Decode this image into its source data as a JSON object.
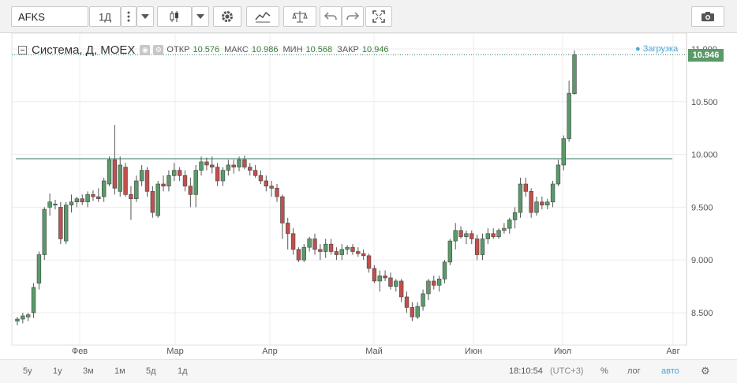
{
  "toolbar": {
    "symbol": "AFKS",
    "interval": "1Д",
    "icons": [
      "more-icon",
      "caret-down-icon",
      "candles-icon",
      "caret-down-icon",
      "gear-icon",
      "indicators-icon",
      "compare-icon",
      "undo-icon",
      "redo-icon",
      "fullscreen-icon",
      "camera-icon"
    ]
  },
  "legend": {
    "title": "Система, Д, MOEX",
    "open_label": "ОТКР",
    "open": "10.576",
    "high_label": "МАКС",
    "high": "10.986",
    "low_label": "МИН",
    "low": "10.568",
    "close_label": "ЗАКР",
    "close": "10.946",
    "loading": "● Загрузка"
  },
  "price_badge": "10.946",
  "y_axis": {
    "ticks": [
      "11.000",
      "10.500",
      "10.000",
      "9.500",
      "9.000",
      "8.500"
    ],
    "tick_values": [
      11.0,
      10.5,
      10.0,
      9.5,
      9.0,
      8.5
    ]
  },
  "x_axis": {
    "ticks": [
      "Фев",
      "Мар",
      "Апр",
      "Май",
      "Июн",
      "Июл",
      "Авг"
    ]
  },
  "colors": {
    "up": "#5a9a6a",
    "down": "#c0504d",
    "hline": "#2f7f5a",
    "badge": "#5a9a6a"
  },
  "bottom": {
    "ranges": [
      "5у",
      "1у",
      "3м",
      "1м",
      "5д",
      "1д"
    ],
    "time": "18:10:54",
    "tz": "(UTC+3)",
    "percent": "%",
    "log": "лог",
    "auto": "авто"
  },
  "chart_data": {
    "type": "candlestick",
    "hline": 9.96,
    "ylim": [
      8.25,
      11.05
    ],
    "candles": [
      [
        8.42,
        8.46,
        8.38,
        8.44
      ],
      [
        8.44,
        8.5,
        8.4,
        8.47
      ],
      [
        8.46,
        8.5,
        8.42,
        8.48
      ],
      [
        8.5,
        8.78,
        8.45,
        8.74
      ],
      [
        8.78,
        9.08,
        8.72,
        9.05
      ],
      [
        9.05,
        9.5,
        9.0,
        9.48
      ],
      [
        9.5,
        9.63,
        9.42,
        9.55
      ],
      [
        9.52,
        9.57,
        9.48,
        9.53
      ],
      [
        9.5,
        9.55,
        9.15,
        9.2
      ],
      [
        9.18,
        9.55,
        9.15,
        9.52
      ],
      [
        9.52,
        9.62,
        9.45,
        9.55
      ],
      [
        9.55,
        9.6,
        9.5,
        9.58
      ],
      [
        9.58,
        9.62,
        9.52,
        9.55
      ],
      [
        9.55,
        9.65,
        9.5,
        9.62
      ],
      [
        9.62,
        9.66,
        9.56,
        9.6
      ],
      [
        9.6,
        9.68,
        9.55,
        9.58
      ],
      [
        9.6,
        9.78,
        9.55,
        9.75
      ],
      [
        9.72,
        9.98,
        9.7,
        9.95
      ],
      [
        9.95,
        10.28,
        9.62,
        9.68
      ],
      [
        9.65,
        9.98,
        9.6,
        9.9
      ],
      [
        9.88,
        9.92,
        9.6,
        9.62
      ],
      [
        9.62,
        9.7,
        9.38,
        9.58
      ],
      [
        9.58,
        9.8,
        9.55,
        9.75
      ],
      [
        9.75,
        9.9,
        9.7,
        9.85
      ],
      [
        9.85,
        9.88,
        9.6,
        9.65
      ],
      [
        9.65,
        9.7,
        9.4,
        9.45
      ],
      [
        9.42,
        9.75,
        9.4,
        9.72
      ],
      [
        9.72,
        9.8,
        9.65,
        9.7
      ],
      [
        9.7,
        9.85,
        9.65,
        9.8
      ],
      [
        9.8,
        9.92,
        9.75,
        9.85
      ],
      [
        9.85,
        9.88,
        9.75,
        9.8
      ],
      [
        9.8,
        9.85,
        9.65,
        9.7
      ],
      [
        9.7,
        9.78,
        9.5,
        9.62
      ],
      [
        9.62,
        9.9,
        9.5,
        9.85
      ],
      [
        9.85,
        9.98,
        9.8,
        9.93
      ],
      [
        9.93,
        9.97,
        9.85,
        9.9
      ],
      [
        9.9,
        9.98,
        9.82,
        9.88
      ],
      [
        9.88,
        9.92,
        9.7,
        9.75
      ],
      [
        9.75,
        9.88,
        9.7,
        9.85
      ],
      [
        9.85,
        9.95,
        9.8,
        9.9
      ],
      [
        9.9,
        9.95,
        9.82,
        9.88
      ],
      [
        9.88,
        9.98,
        9.84,
        9.95
      ],
      [
        9.95,
        9.99,
        9.86,
        9.88
      ],
      [
        9.88,
        9.92,
        9.8,
        9.85
      ],
      [
        9.85,
        9.9,
        9.78,
        9.8
      ],
      [
        9.8,
        9.85,
        9.72,
        9.75
      ],
      [
        9.75,
        9.8,
        9.65,
        9.7
      ],
      [
        9.7,
        9.75,
        9.6,
        9.68
      ],
      [
        9.68,
        9.72,
        9.55,
        9.6
      ],
      [
        9.6,
        9.62,
        9.2,
        9.35
      ],
      [
        9.35,
        9.4,
        9.1,
        9.25
      ],
      [
        9.25,
        9.3,
        9.05,
        9.1
      ],
      [
        9.1,
        9.12,
        8.98,
        9.0
      ],
      [
        9.0,
        9.15,
        8.98,
        9.12
      ],
      [
        9.12,
        9.22,
        9.08,
        9.2
      ],
      [
        9.2,
        9.25,
        9.05,
        9.1
      ],
      [
        9.1,
        9.15,
        9.0,
        9.08
      ],
      [
        9.08,
        9.2,
        9.02,
        9.15
      ],
      [
        9.15,
        9.2,
        9.05,
        9.08
      ],
      [
        9.08,
        9.12,
        9.0,
        9.05
      ],
      [
        9.05,
        9.15,
        9.0,
        9.1
      ],
      [
        9.1,
        9.14,
        9.05,
        9.12
      ],
      [
        9.12,
        9.15,
        9.05,
        9.08
      ],
      [
        9.08,
        9.12,
        9.03,
        9.06
      ],
      [
        9.06,
        9.1,
        9.0,
        9.04
      ],
      [
        9.04,
        9.06,
        8.88,
        8.92
      ],
      [
        8.92,
        8.95,
        8.78,
        8.8
      ],
      [
        8.8,
        8.9,
        8.7,
        8.85
      ],
      [
        8.85,
        8.9,
        8.8,
        8.83
      ],
      [
        8.83,
        8.88,
        8.72,
        8.75
      ],
      [
        8.75,
        8.82,
        8.7,
        8.8
      ],
      [
        8.8,
        8.82,
        8.6,
        8.65
      ],
      [
        8.65,
        8.7,
        8.5,
        8.55
      ],
      [
        8.55,
        8.6,
        8.42,
        8.46
      ],
      [
        8.46,
        8.6,
        8.44,
        8.56
      ],
      [
        8.56,
        8.72,
        8.52,
        8.68
      ],
      [
        8.68,
        8.82,
        8.62,
        8.8
      ],
      [
        8.8,
        8.85,
        8.72,
        8.76
      ],
      [
        8.76,
        8.85,
        8.7,
        8.82
      ],
      [
        8.82,
        9.0,
        8.78,
        8.98
      ],
      [
        8.98,
        9.2,
        8.95,
        9.18
      ],
      [
        9.18,
        9.35,
        9.1,
        9.28
      ],
      [
        9.28,
        9.32,
        9.2,
        9.22
      ],
      [
        9.22,
        9.28,
        9.15,
        9.25
      ],
      [
        9.25,
        9.28,
        9.15,
        9.2
      ],
      [
        9.2,
        9.24,
        9.0,
        9.05
      ],
      [
        9.05,
        9.25,
        9.0,
        9.2
      ],
      [
        9.2,
        9.3,
        9.15,
        9.25
      ],
      [
        9.25,
        9.3,
        9.2,
        9.22
      ],
      [
        9.22,
        9.3,
        9.2,
        9.28
      ],
      [
        9.28,
        9.35,
        9.25,
        9.3
      ],
      [
        9.3,
        9.4,
        9.25,
        9.38
      ],
      [
        9.38,
        9.5,
        9.3,
        9.45
      ],
      [
        9.45,
        9.78,
        9.4,
        9.72
      ],
      [
        9.72,
        9.78,
        9.6,
        9.65
      ],
      [
        9.65,
        9.68,
        9.4,
        9.45
      ],
      [
        9.45,
        9.6,
        9.42,
        9.55
      ],
      [
        9.55,
        9.6,
        9.48,
        9.52
      ],
      [
        9.52,
        9.58,
        9.48,
        9.55
      ],
      [
        9.55,
        9.75,
        9.5,
        9.72
      ],
      [
        9.72,
        9.95,
        9.7,
        9.9
      ],
      [
        9.9,
        10.18,
        9.85,
        10.15
      ],
      [
        10.15,
        10.7,
        10.12,
        10.58
      ],
      [
        10.576,
        10.986,
        10.568,
        10.946
      ]
    ]
  }
}
